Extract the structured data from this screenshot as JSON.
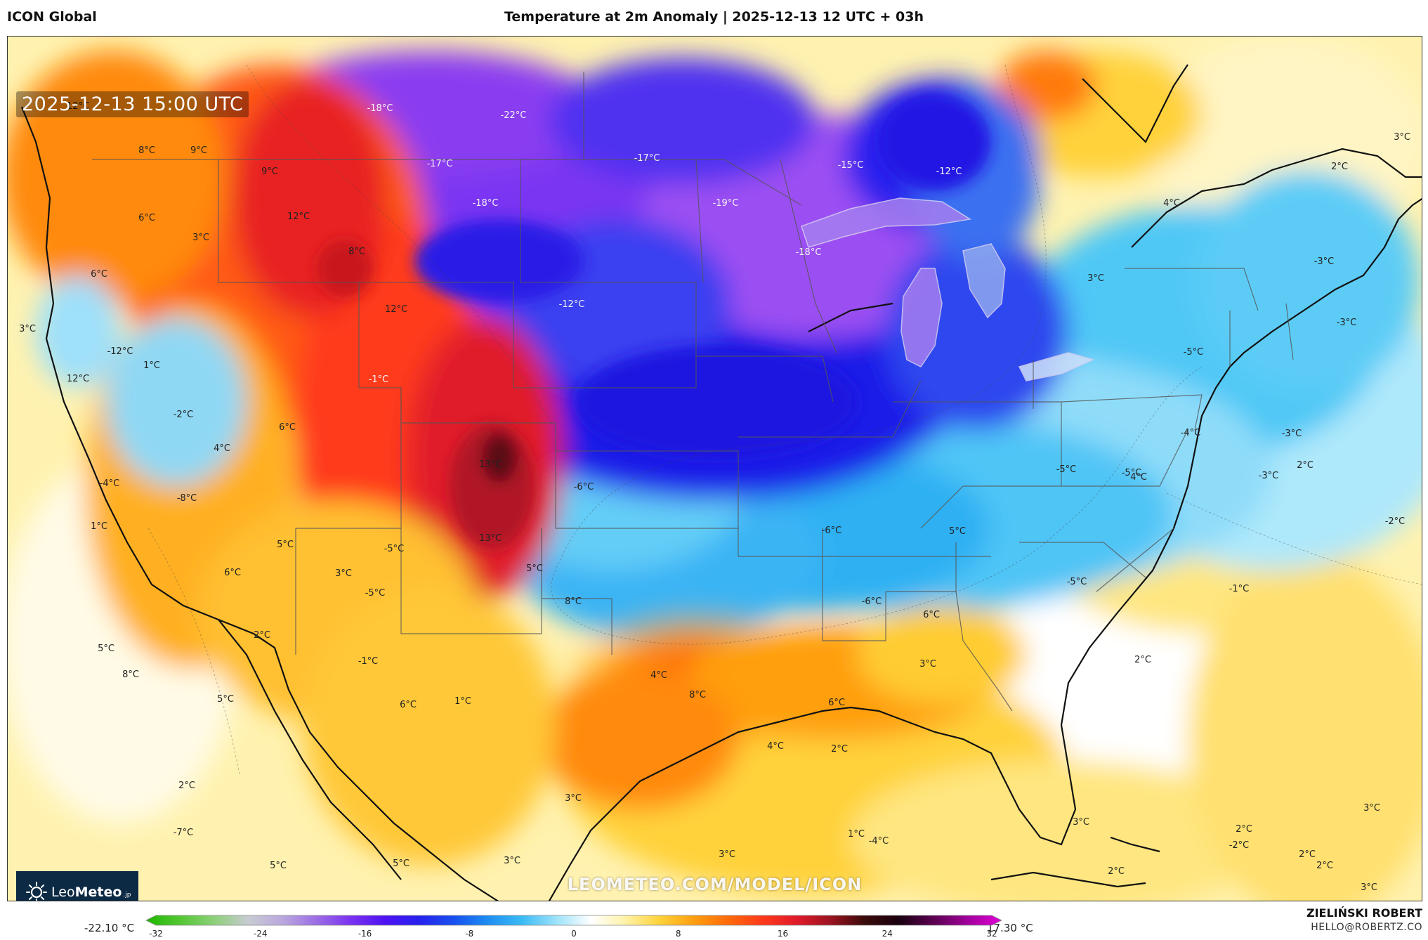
{
  "header": {
    "model": "ICON Global",
    "title": "Temperature at 2m Anomaly | 2025-12-13 12 UTC + 03h"
  },
  "map": {
    "valid_time": "2025-12-13 15:00 UTC",
    "watermark": "LEOMETEO.COM/MODEL/ICON",
    "labels": [
      {
        "text": "12°C",
        "tone": "warm"
      },
      {
        "text": "-18°C",
        "tone": "cold"
      },
      {
        "text": "-22°C",
        "tone": "cold"
      },
      {
        "text": "8°C",
        "tone": "warm"
      },
      {
        "text": "9°C",
        "tone": "warm"
      },
      {
        "text": "-17°C",
        "tone": "cold"
      },
      {
        "text": "-17°C",
        "tone": "cold"
      },
      {
        "text": "-15°C",
        "tone": "cold"
      },
      {
        "text": "-12°C",
        "tone": "cold"
      },
      {
        "text": "9°C",
        "tone": "warm"
      },
      {
        "text": "12°C",
        "tone": "warm"
      },
      {
        "text": "-18°C",
        "tone": "cold"
      },
      {
        "text": "-19°C",
        "tone": "cold"
      },
      {
        "text": "6°C",
        "tone": "warm"
      },
      {
        "text": "8°C",
        "tone": "warm"
      },
      {
        "text": "3°C",
        "tone": "warm"
      },
      {
        "text": "-18°C",
        "tone": "cold"
      },
      {
        "text": "6°C",
        "tone": "warm"
      },
      {
        "text": "12°C",
        "tone": "warm"
      },
      {
        "text": "-12°C",
        "tone": "cold"
      },
      {
        "text": "3°C",
        "tone": "warm"
      },
      {
        "text": "-12°C",
        "tone": "cold"
      },
      {
        "text": "1°C",
        "tone": "warm"
      },
      {
        "text": "-1°C",
        "tone": "cold"
      },
      {
        "text": "12°C",
        "tone": "warm"
      },
      {
        "text": "-2°C",
        "tone": "cold"
      },
      {
        "text": "6°C",
        "tone": "warm"
      },
      {
        "text": "4°C",
        "tone": "warm"
      },
      {
        "text": "13°C",
        "tone": "warm"
      },
      {
        "text": "-4°C",
        "tone": "cold"
      },
      {
        "text": "-8°C",
        "tone": "cold"
      },
      {
        "text": "-6°C",
        "tone": "cold"
      },
      {
        "text": "1°C",
        "tone": "warm"
      },
      {
        "text": "13°C",
        "tone": "warm"
      },
      {
        "text": "5°C",
        "tone": "warm"
      },
      {
        "text": "-5°C",
        "tone": "cold"
      },
      {
        "text": "6°C",
        "tone": "warm"
      },
      {
        "text": "3°C",
        "tone": "warm"
      },
      {
        "text": "5°C",
        "tone": "warm"
      },
      {
        "text": "-5°C",
        "tone": "cold"
      },
      {
        "text": "5°C",
        "tone": "warm"
      },
      {
        "text": "2°C",
        "tone": "warm"
      },
      {
        "text": "8°C",
        "tone": "warm"
      },
      {
        "text": "-1°C",
        "tone": "cold"
      },
      {
        "text": "5°C",
        "tone": "warm"
      },
      {
        "text": "6°C",
        "tone": "warm"
      },
      {
        "text": "4°C",
        "tone": "warm"
      },
      {
        "text": "8°C",
        "tone": "warm"
      },
      {
        "text": "8°C",
        "tone": "warm"
      },
      {
        "text": "1°C",
        "tone": "warm"
      },
      {
        "text": "6°C",
        "tone": "warm"
      },
      {
        "text": "6°C",
        "tone": "warm"
      },
      {
        "text": "2°C",
        "tone": "warm"
      },
      {
        "text": "2°C",
        "tone": "warm"
      },
      {
        "text": "1°C",
        "tone": "warm"
      },
      {
        "text": "3°C",
        "tone": "warm"
      },
      {
        "text": "-7°C",
        "tone": "cold"
      },
      {
        "text": "5°C",
        "tone": "warm"
      },
      {
        "text": "3°C",
        "tone": "warm"
      },
      {
        "text": "4°C",
        "tone": "warm"
      },
      {
        "text": "5°C",
        "tone": "warm"
      },
      {
        "text": "3°C",
        "tone": "warm"
      },
      {
        "text": "-4°C",
        "tone": "cold"
      },
      {
        "text": "-6°C",
        "tone": "cold"
      },
      {
        "text": "5°C",
        "tone": "warm"
      },
      {
        "text": "3°C",
        "tone": "warm"
      },
      {
        "text": "-6°C",
        "tone": "cold"
      },
      {
        "text": "-5°C",
        "tone": "cold"
      },
      {
        "text": "-5°C",
        "tone": "cold"
      },
      {
        "text": "-4°C",
        "tone": "cold"
      },
      {
        "text": "-5°C",
        "tone": "cold"
      },
      {
        "text": "4°C",
        "tone": "warm"
      },
      {
        "text": "2°C",
        "tone": "warm"
      },
      {
        "text": "2°C",
        "tone": "warm"
      },
      {
        "text": "2°C",
        "tone": "warm"
      },
      {
        "text": "-1°C",
        "tone": "cold"
      },
      {
        "text": "-3°C",
        "tone": "cold"
      },
      {
        "text": "-2°C",
        "tone": "cold"
      },
      {
        "text": "-3°C",
        "tone": "cold"
      },
      {
        "text": "4°C",
        "tone": "warm"
      },
      {
        "text": "3°C",
        "tone": "warm"
      },
      {
        "text": "-5°C",
        "tone": "cold"
      },
      {
        "text": "-3°C",
        "tone": "cold"
      },
      {
        "text": "-3°C",
        "tone": "cold"
      },
      {
        "text": "3°C",
        "tone": "warm"
      },
      {
        "text": "2°C",
        "tone": "warm"
      },
      {
        "text": "3°C",
        "tone": "warm"
      },
      {
        "text": "3°C",
        "tone": "warm"
      },
      {
        "text": "2°C",
        "tone": "warm"
      },
      {
        "text": "2°C",
        "tone": "warm"
      },
      {
        "text": "3°C",
        "tone": "warm"
      },
      {
        "text": "-2°C",
        "tone": "cold"
      },
      {
        "text": "2°C",
        "tone": "warm"
      }
    ]
  },
  "logo": {
    "name_plain": "Leo",
    "name_bold": "Meteo",
    "suffix": ".jp",
    "icon": "sun-icon"
  },
  "legend": {
    "min_label": "-22.10 °C",
    "max_label": "17.30 °C",
    "ticks": [
      "-32",
      "-24",
      "-16",
      "-8",
      "0",
      "8",
      "16",
      "24",
      "32"
    ],
    "colors": [
      "#1fb800",
      "#53c733",
      "#8ed07a",
      "#c8cbd3",
      "#b9a7de",
      "#9c6ce6",
      "#7a31f0",
      "#4d12f2",
      "#2722ee",
      "#1850ee",
      "#1e8ef2",
      "#3cbcf5",
      "#9fe3fa",
      "#ffffff",
      "#fff3a8",
      "#ffd23a",
      "#ff9f10",
      "#ff6a0a",
      "#ff3a1a",
      "#e01a2a",
      "#9b1420",
      "#3a0a0a",
      "#1a0010",
      "#5a0050",
      "#a0009a",
      "#e000d8"
    ]
  },
  "footer": {
    "author": "ZIELIŃSKI ROBERT",
    "email": "HELLO@ROBERTZ.CO"
  }
}
